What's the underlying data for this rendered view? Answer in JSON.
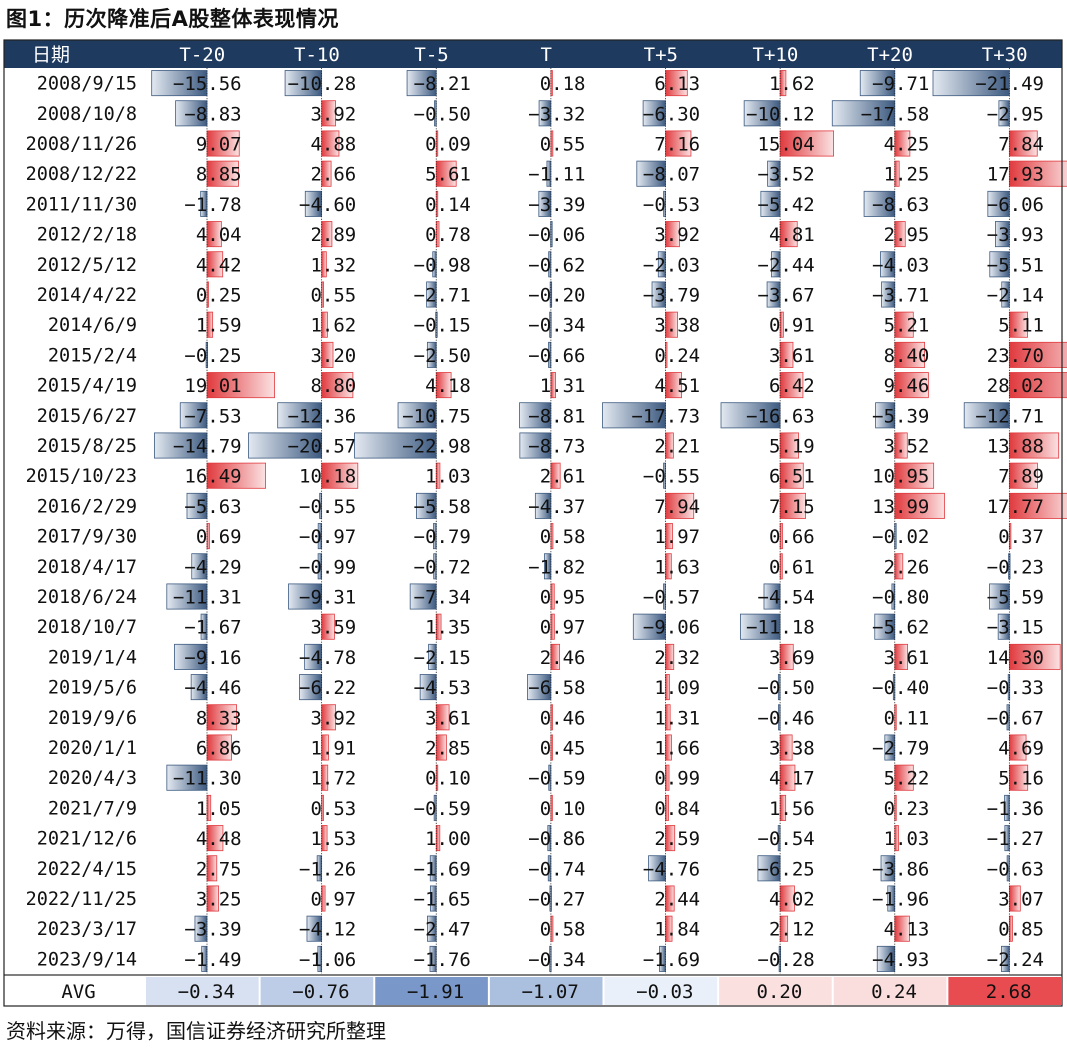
{
  "title": "图1：历次降准后A股整体表现情况",
  "source": "资料来源：万得，国信证券经济研究所整理",
  "colors": {
    "header_bg": "#1f3a5f",
    "negative_bar": "#3d5a80",
    "positive_bar": "#e03a3e",
    "avg_neg_strong": "#4a72b5",
    "avg_pos_strong": "#e84a4f"
  },
  "chart_data": {
    "type": "table",
    "columns": [
      "日期",
      "T-20",
      "T-10",
      "T-5",
      "T",
      "T+5",
      "T+10",
      "T+20",
      "T+30"
    ],
    "rows": [
      {
        "date": "2008/9/15",
        "values": [
          -15.56,
          -10.28,
          -8.21,
          0.18,
          6.13,
          1.62,
          -9.71,
          -21.49
        ]
      },
      {
        "date": "2008/10/8",
        "values": [
          -8.83,
          3.92,
          -0.5,
          -3.32,
          -6.3,
          -10.12,
          -17.58,
          -2.95
        ]
      },
      {
        "date": "2008/11/26",
        "values": [
          9.07,
          4.88,
          0.09,
          0.55,
          7.16,
          15.04,
          4.25,
          7.84
        ]
      },
      {
        "date": "2008/12/22",
        "values": [
          8.85,
          2.66,
          5.61,
          -1.11,
          -8.07,
          -3.52,
          1.25,
          17.93
        ]
      },
      {
        "date": "2011/11/30",
        "values": [
          -1.78,
          -4.6,
          0.14,
          -3.39,
          -0.53,
          -5.42,
          -8.63,
          -6.06
        ]
      },
      {
        "date": "2012/2/18",
        "values": [
          4.04,
          2.89,
          0.78,
          -0.06,
          3.92,
          4.81,
          2.95,
          -3.93
        ]
      },
      {
        "date": "2012/5/12",
        "values": [
          4.42,
          1.32,
          -0.98,
          -0.62,
          -2.03,
          -2.44,
          -4.03,
          -5.51
        ]
      },
      {
        "date": "2014/4/22",
        "values": [
          0.25,
          0.55,
          -2.71,
          -0.2,
          -3.79,
          -3.67,
          -3.71,
          -2.14
        ]
      },
      {
        "date": "2014/6/9",
        "values": [
          1.59,
          1.62,
          -0.15,
          -0.34,
          3.38,
          0.91,
          5.21,
          5.11
        ]
      },
      {
        "date": "2015/2/4",
        "values": [
          -0.25,
          3.2,
          -2.5,
          -0.66,
          0.24,
          3.61,
          8.4,
          23.7
        ]
      },
      {
        "date": "2015/4/19",
        "values": [
          19.01,
          8.8,
          4.18,
          1.31,
          4.51,
          6.42,
          9.46,
          28.02
        ]
      },
      {
        "date": "2015/6/27",
        "values": [
          -7.53,
          -12.36,
          -10.75,
          -8.81,
          -17.73,
          -16.63,
          -5.39,
          -12.71
        ]
      },
      {
        "date": "2015/8/25",
        "values": [
          -14.79,
          -20.57,
          -22.98,
          -8.73,
          2.21,
          5.19,
          3.52,
          13.88
        ]
      },
      {
        "date": "2015/10/23",
        "values": [
          16.49,
          10.18,
          1.03,
          2.61,
          -0.55,
          6.51,
          10.95,
          7.89
        ]
      },
      {
        "date": "2016/2/29",
        "values": [
          -5.63,
          -0.55,
          -5.58,
          -4.37,
          7.94,
          7.15,
          13.99,
          17.77
        ]
      },
      {
        "date": "2017/9/30",
        "values": [
          0.69,
          -0.97,
          -0.79,
          0.58,
          1.97,
          0.66,
          -0.02,
          0.37
        ]
      },
      {
        "date": "2018/4/17",
        "values": [
          -4.29,
          -0.99,
          -0.72,
          -1.82,
          1.63,
          0.61,
          2.26,
          -0.23
        ]
      },
      {
        "date": "2018/6/24",
        "values": [
          -11.31,
          -9.31,
          -7.34,
          0.95,
          -0.57,
          -4.54,
          -0.8,
          -5.59
        ]
      },
      {
        "date": "2018/10/7",
        "values": [
          -1.67,
          3.59,
          1.35,
          0.97,
          -9.06,
          -11.18,
          -5.62,
          -3.15
        ]
      },
      {
        "date": "2019/1/4",
        "values": [
          -9.16,
          -4.78,
          -2.15,
          2.46,
          2.32,
          3.69,
          3.61,
          14.3
        ]
      },
      {
        "date": "2019/5/6",
        "values": [
          -4.46,
          -6.22,
          -4.53,
          -6.58,
          1.09,
          -0.5,
          -0.4,
          -0.33
        ]
      },
      {
        "date": "2019/9/6",
        "values": [
          8.33,
          3.92,
          3.61,
          0.46,
          1.31,
          -0.46,
          0.11,
          -0.67
        ]
      },
      {
        "date": "2020/1/1",
        "values": [
          6.86,
          1.91,
          2.85,
          0.45,
          1.66,
          3.38,
          -2.79,
          4.69
        ]
      },
      {
        "date": "2020/4/3",
        "values": [
          -11.3,
          1.72,
          0.1,
          -0.59,
          0.99,
          4.17,
          5.22,
          5.16
        ]
      },
      {
        "date": "2021/7/9",
        "values": [
          1.05,
          0.53,
          -0.59,
          0.1,
          0.84,
          1.56,
          0.23,
          -1.36
        ]
      },
      {
        "date": "2021/12/6",
        "values": [
          4.48,
          1.53,
          1.0,
          -0.86,
          2.59,
          -0.54,
          1.03,
          -1.27
        ]
      },
      {
        "date": "2022/4/15",
        "values": [
          2.75,
          -1.26,
          -1.69,
          -0.74,
          -4.76,
          -6.25,
          -3.86,
          -0.63
        ]
      },
      {
        "date": "2022/11/25",
        "values": [
          3.25,
          0.97,
          -1.65,
          -0.27,
          2.44,
          4.02,
          -1.96,
          3.07
        ]
      },
      {
        "date": "2023/3/17",
        "values": [
          -3.39,
          -4.12,
          -2.47,
          0.58,
          1.84,
          2.12,
          4.13,
          0.85
        ]
      },
      {
        "date": "2023/9/14",
        "values": [
          -1.49,
          -1.06,
          -1.76,
          -0.34,
          -1.69,
          -0.28,
          -4.93,
          -2.24
        ]
      }
    ],
    "avg": {
      "label": "AVG",
      "values": [
        -0.34,
        -0.76,
        -1.91,
        -1.07,
        -0.03,
        0.2,
        0.24,
        2.68
      ]
    }
  }
}
